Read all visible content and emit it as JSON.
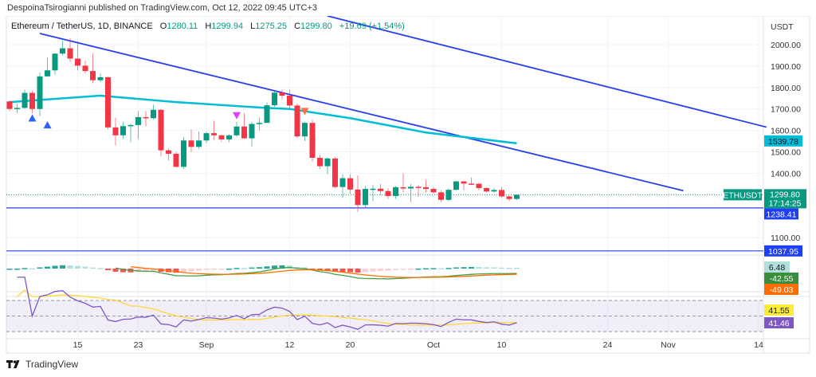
{
  "header": {
    "published": "DespoinaTsirogianni published on TradingView.com, Oct 12, 2022 09:45 UTC+3",
    "symbol": "Ethereum / TetherUS, 1D, BINANCE",
    "open_label": "O",
    "open": "1280.11",
    "high_label": "H",
    "high": "1299.94",
    "low_label": "L",
    "low": "1275.25",
    "close_label": "C",
    "close": "1299.80",
    "change": "+19.69 (+1.54%)"
  },
  "footer": {
    "brand": "TradingView"
  },
  "colors": {
    "up": "#089981",
    "down": "#f23645",
    "trendline": "#2b3fe8",
    "ma": "#00bcd4",
    "macd": "#43a047",
    "signal": "#ff6d00",
    "rsi": "#7e57c2",
    "rsi_ma": "#fdd835"
  },
  "chart_data": {
    "type": "candlestick",
    "currency": "USDT",
    "y_ticks": [
      "2000.00",
      "1900.00",
      "1800.00",
      "1700.00",
      "1600.00",
      "1500.00",
      "1400.00",
      "1100.00"
    ],
    "x_ticks": [
      {
        "date": "2022-08-15",
        "label": "15"
      },
      {
        "date": "2022-08-23",
        "label": "23"
      },
      {
        "date": "2022-09-01",
        "label": "Sep"
      },
      {
        "date": "2022-09-12",
        "label": "12"
      },
      {
        "date": "2022-09-20",
        "label": "20"
      },
      {
        "date": "2022-10-01",
        "label": "Oct"
      },
      {
        "date": "2022-10-10",
        "label": "10"
      },
      {
        "date": "2022-10-24",
        "label": "24"
      },
      {
        "date": "2022-11-01",
        "label": "Nov"
      },
      {
        "date": "2022-11-14",
        "label": "14"
      }
    ],
    "candles": [
      [
        "2022-08-06",
        1735,
        1740,
        1690,
        1700
      ],
      [
        "2022-08-07",
        1700,
        1725,
        1680,
        1705
      ],
      [
        "2022-08-08",
        1705,
        1790,
        1700,
        1775
      ],
      [
        "2022-08-09",
        1775,
        1785,
        1680,
        1700
      ],
      [
        "2022-08-10",
        1700,
        1870,
        1665,
        1852
      ],
      [
        "2022-08-11",
        1852,
        1940,
        1850,
        1880
      ],
      [
        "2022-08-12",
        1880,
        1960,
        1860,
        1958
      ],
      [
        "2022-08-13",
        1958,
        2020,
        1950,
        1983
      ],
      [
        "2022-08-14",
        1983,
        2030,
        1920,
        1935
      ],
      [
        "2022-08-15",
        1935,
        2015,
        1880,
        1902
      ],
      [
        "2022-08-16",
        1902,
        1925,
        1865,
        1877
      ],
      [
        "2022-08-17",
        1877,
        1960,
        1820,
        1834
      ],
      [
        "2022-08-18",
        1834,
        1865,
        1825,
        1848
      ],
      [
        "2022-08-19",
        1848,
        1850,
        1605,
        1614
      ],
      [
        "2022-08-20",
        1614,
        1660,
        1530,
        1577
      ],
      [
        "2022-08-21",
        1577,
        1640,
        1560,
        1620
      ],
      [
        "2022-08-22",
        1620,
        1630,
        1545,
        1625
      ],
      [
        "2022-08-23",
        1625,
        1690,
        1560,
        1662
      ],
      [
        "2022-08-24",
        1662,
        1690,
        1620,
        1657
      ],
      [
        "2022-08-25",
        1657,
        1720,
        1650,
        1696
      ],
      [
        "2022-08-26",
        1696,
        1700,
        1480,
        1507
      ],
      [
        "2022-08-27",
        1507,
        1515,
        1460,
        1491
      ],
      [
        "2022-08-28",
        1491,
        1500,
        1425,
        1430
      ],
      [
        "2022-08-29",
        1430,
        1570,
        1420,
        1553
      ],
      [
        "2022-08-30",
        1553,
        1605,
        1500,
        1523
      ],
      [
        "2022-08-31",
        1523,
        1595,
        1515,
        1553
      ],
      [
        "2022-09-01",
        1553,
        1595,
        1540,
        1587
      ],
      [
        "2022-09-02",
        1587,
        1645,
        1555,
        1577
      ],
      [
        "2022-09-03",
        1577,
        1580,
        1545,
        1558
      ],
      [
        "2022-09-04",
        1558,
        1582,
        1545,
        1577
      ],
      [
        "2022-09-05",
        1577,
        1640,
        1570,
        1618
      ],
      [
        "2022-09-06",
        1618,
        1680,
        1560,
        1563
      ],
      [
        "2022-09-07",
        1563,
        1640,
        1525,
        1630
      ],
      [
        "2022-09-08",
        1630,
        1660,
        1600,
        1635
      ],
      [
        "2022-09-09",
        1635,
        1730,
        1635,
        1717
      ],
      [
        "2022-09-10",
        1717,
        1785,
        1710,
        1776
      ],
      [
        "2022-09-11",
        1776,
        1790,
        1745,
        1762
      ],
      [
        "2022-09-12",
        1762,
        1790,
        1700,
        1716
      ],
      [
        "2022-09-13",
        1716,
        1725,
        1565,
        1572
      ],
      [
        "2022-09-14",
        1572,
        1640,
        1550,
        1635
      ],
      [
        "2022-09-15",
        1635,
        1650,
        1455,
        1472
      ],
      [
        "2022-09-16",
        1472,
        1485,
        1420,
        1433
      ],
      [
        "2022-09-17",
        1433,
        1475,
        1395,
        1469
      ],
      [
        "2022-09-18",
        1469,
        1475,
        1330,
        1336
      ],
      [
        "2022-09-19",
        1336,
        1395,
        1285,
        1377
      ],
      [
        "2022-09-20",
        1377,
        1395,
        1305,
        1324
      ],
      [
        "2022-09-21",
        1324,
        1390,
        1220,
        1252
      ],
      [
        "2022-09-22",
        1252,
        1340,
        1240,
        1327
      ],
      [
        "2022-09-23",
        1327,
        1345,
        1270,
        1328
      ],
      [
        "2022-09-24",
        1328,
        1350,
        1300,
        1317
      ],
      [
        "2022-09-25",
        1317,
        1330,
        1280,
        1294
      ],
      [
        "2022-09-26",
        1294,
        1340,
        1280,
        1335
      ],
      [
        "2022-09-27",
        1335,
        1400,
        1310,
        1329
      ],
      [
        "2022-09-28",
        1329,
        1350,
        1265,
        1337
      ],
      [
        "2022-09-29",
        1337,
        1345,
        1290,
        1335
      ],
      [
        "2022-09-30",
        1335,
        1370,
        1310,
        1327
      ],
      [
        "2022-10-01",
        1327,
        1335,
        1305,
        1311
      ],
      [
        "2022-10-02",
        1311,
        1320,
        1265,
        1276
      ],
      [
        "2022-10-03",
        1276,
        1330,
        1270,
        1323
      ],
      [
        "2022-10-04",
        1323,
        1365,
        1320,
        1362
      ],
      [
        "2022-10-05",
        1362,
        1365,
        1320,
        1352
      ],
      [
        "2022-10-06",
        1352,
        1380,
        1345,
        1351
      ],
      [
        "2022-10-07",
        1351,
        1355,
        1320,
        1331
      ],
      [
        "2022-10-08",
        1331,
        1335,
        1310,
        1315
      ],
      [
        "2022-10-09",
        1315,
        1330,
        1310,
        1322
      ],
      [
        "2022-10-10",
        1322,
        1335,
        1285,
        1292
      ],
      [
        "2022-10-11",
        1292,
        1295,
        1270,
        1280
      ],
      [
        "2022-10-12",
        1280.11,
        1299.94,
        1275.25,
        1299.8
      ]
    ],
    "moving_average": [
      [
        "2022-08-06",
        1732
      ],
      [
        "2022-08-18",
        1762
      ],
      [
        "2022-08-28",
        1732
      ],
      [
        "2022-09-08",
        1707
      ],
      [
        "2022-09-12",
        1700
      ],
      [
        "2022-09-20",
        1657
      ],
      [
        "2022-09-30",
        1590
      ],
      [
        "2022-10-12",
        1539.78
      ]
    ],
    "trendlines": [
      {
        "from": [
          "2022-08-10",
          2052
        ],
        "to": [
          "2022-11-03",
          1319
        ]
      },
      {
        "from": [
          "2022-09-17",
          2134
        ],
        "to": [
          "2022-11-14",
          1615
        ]
      }
    ],
    "horizontal_lines": [
      1238.41,
      1037.95
    ],
    "markers": [
      {
        "date": "2022-08-09",
        "type": "up",
        "price": 1660,
        "color": "#2962ff"
      },
      {
        "date": "2022-08-11",
        "type": "up",
        "price": 1628,
        "color": "#2962ff"
      },
      {
        "date": "2022-09-05",
        "type": "down",
        "price": 1670,
        "color": "#e040fb"
      },
      {
        "date": "2022-09-14",
        "type": "down",
        "price": 1690,
        "color": "#ff7043"
      }
    ],
    "price_labels": {
      "ma": "1539.78",
      "symbol": "ETHUSDT",
      "last": "1299.80",
      "countdown": "17:14:25",
      "line1": "1238.41",
      "line2": "1037.95"
    },
    "macd": {
      "histogram": "6.48",
      "macd": "-42.55",
      "signal": "-49.03"
    },
    "rsi": {
      "ma": "41.55",
      "rsi": "41.46",
      "bands": [
        30,
        50,
        70
      ]
    }
  }
}
